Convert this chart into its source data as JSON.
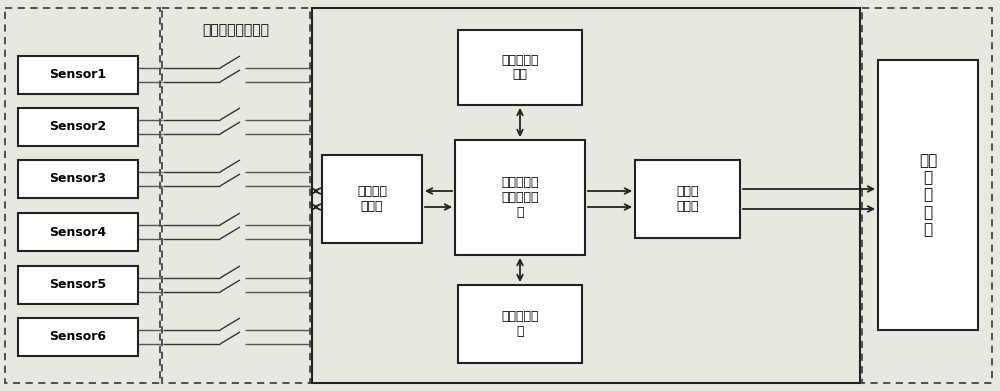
{
  "bg_color": "#e8e8e0",
  "box_color": "#ffffff",
  "box_edge": "#222222",
  "dashed_edge": "#444444",
  "line_color": "#222222",
  "sensors": [
    "Sensor1",
    "Sensor2",
    "Sensor3",
    "Sensor4",
    "Sensor5",
    "Sensor6"
  ],
  "switch_label": "多路程控开关模块",
  "block1_label": "压控交流\n恒流源",
  "block2_label": "全水阻抗传\n感器驱动电\n路",
  "block3_label": "交直流转换\n电路",
  "block4_label": "差分放大电\n路",
  "block5_label": "压频转\n换电路",
  "block6_label": "信号\n采\n集\n系\n统",
  "figsize": [
    10.0,
    3.91
  ],
  "dpi": 100
}
